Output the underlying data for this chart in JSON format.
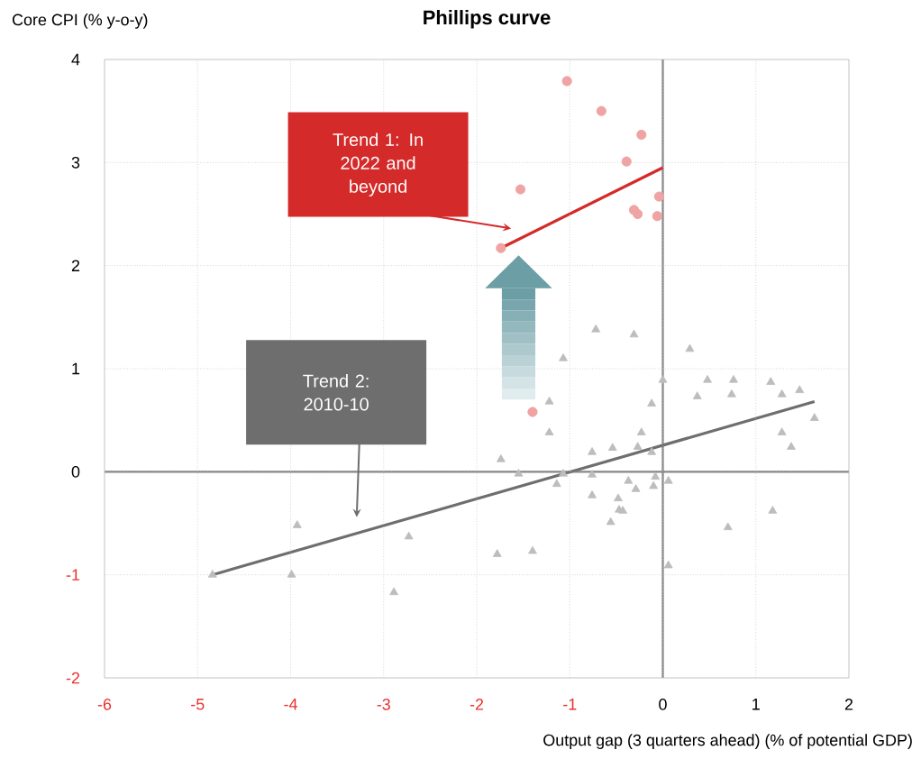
{
  "chart_data": {
    "type": "scatter",
    "title": "Phillips curve",
    "xlabel": "Output gap (3 quarters ahead) (% of potential GDP)",
    "ylabel": "Core CPI (% y-o-y)",
    "xlim": [
      -6,
      2
    ],
    "ylim": [
      -2,
      4
    ],
    "xticks": [
      -6,
      -5,
      -4,
      -3,
      -2,
      -1,
      0,
      1,
      2
    ],
    "yticks": [
      -2,
      -1,
      0,
      1,
      2,
      3,
      4
    ],
    "grid": true,
    "series": [
      {
        "marker": "circle",
        "color": "#f0a3a3",
        "x": [
          -1.03,
          -0.66,
          -0.23,
          -0.39,
          -1.53,
          -0.04,
          -0.31,
          -0.27,
          -0.06,
          -1.74,
          -1.4
        ],
        "values": [
          3.79,
          3.5,
          3.27,
          3.01,
          2.74,
          2.67,
          2.54,
          2.5,
          2.48,
          2.17,
          0.58
        ]
      },
      {
        "marker": "triangle",
        "color": "#bdbdbd",
        "x": [
          -0.72,
          -0.31,
          0.29,
          -1.07,
          0.0,
          0.48,
          0.76,
          1.16,
          0.37,
          0.74,
          1.28,
          1.47,
          -1.22,
          -0.12,
          1.63,
          -1.22,
          -0.23,
          1.28,
          1.38,
          -0.76,
          -0.54,
          -0.27,
          -0.12,
          -1.74,
          -1.55,
          -1.07,
          -0.76,
          -1.14,
          -0.37,
          -0.29,
          -0.08,
          0.06,
          -0.1,
          -0.76,
          -0.48,
          -0.47,
          -0.43,
          -0.56,
          1.18,
          0.7,
          -3.93,
          -2.73,
          -1.78,
          -1.4,
          -3.99,
          -2.89,
          0.06,
          -4.84
        ],
        "values": [
          1.38,
          1.33,
          1.19,
          1.1,
          0.89,
          0.89,
          0.89,
          0.87,
          0.73,
          0.75,
          0.75,
          0.79,
          0.68,
          0.66,
          0.52,
          0.38,
          0.38,
          0.38,
          0.24,
          0.19,
          0.23,
          0.24,
          0.19,
          0.12,
          -0.02,
          -0.02,
          -0.03,
          -0.12,
          -0.09,
          -0.17,
          -0.05,
          -0.09,
          -0.14,
          -0.23,
          -0.26,
          -0.37,
          -0.38,
          -0.49,
          -0.38,
          -0.54,
          -0.52,
          -0.63,
          -0.8,
          -0.77,
          -1.0,
          -1.17,
          -0.91,
          -1.0
        ]
      },
      {
        "type": "line",
        "marker": "none",
        "color": "#d42a2a",
        "x": [
          -1.74,
          0.0
        ],
        "values": [
          2.17,
          2.95
        ]
      },
      {
        "type": "line",
        "marker": "none",
        "color": "#6e6e6e",
        "x": [
          -4.84,
          1.63
        ],
        "values": [
          -1.0,
          0.68
        ]
      }
    ],
    "annotations": [
      "Trend 1: In 2022 and beyond",
      "Trend 2: 2010-10"
    ]
  }
}
